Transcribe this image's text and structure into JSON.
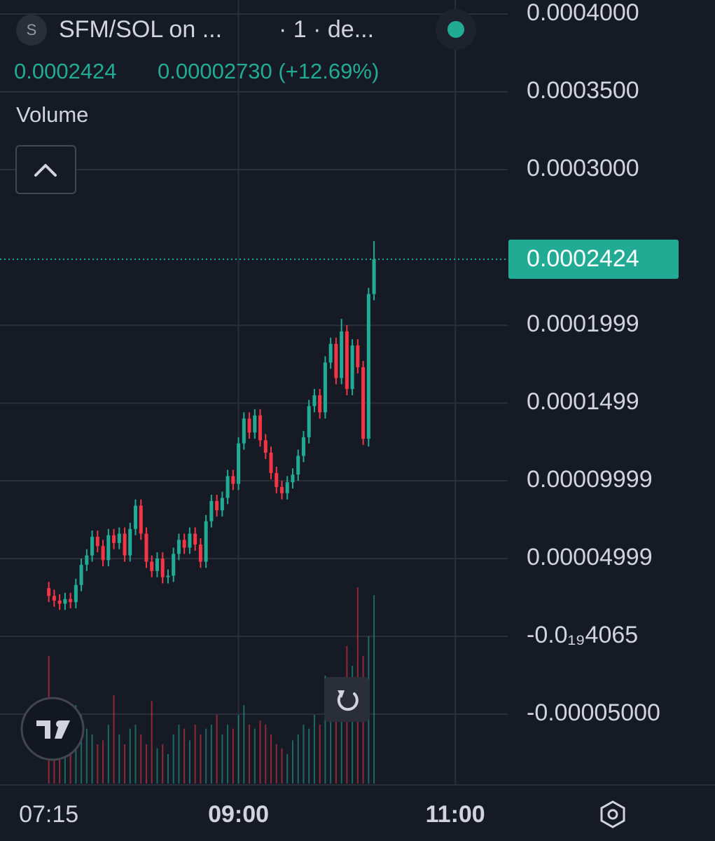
{
  "header": {
    "icon_letter": "S",
    "symbol": "SFM/SOL on ...",
    "interval": "· 1 · de...",
    "change": "0.00002730 (+12.69%)",
    "volume_label": "Volume"
  },
  "chart_data": {
    "type": "candlestick",
    "up_color": "#22ab94",
    "down_color": "#f23645",
    "grid": true,
    "last_price": 0.0002424,
    "x": [
      435,
      438,
      441,
      444,
      447,
      450,
      453,
      456,
      459,
      462,
      465,
      468,
      471,
      474,
      477,
      480,
      483,
      486,
      489,
      492,
      495,
      498,
      501,
      504,
      507,
      510,
      513,
      516,
      519,
      522,
      525,
      528,
      531,
      534,
      537,
      540,
      543,
      546,
      549,
      552,
      555,
      558,
      561,
      564,
      567,
      570,
      573,
      576,
      579,
      582,
      585,
      588,
      591,
      594,
      597,
      600,
      603,
      606,
      609,
      612,
      615
    ],
    "open": [
      3.1e-05,
      2.6e-05,
      2.3e-05,
      2.1e-05,
      2.4e-05,
      2.2e-05,
      3.3e-05,
      4.6e-05,
      5.2e-05,
      6.4e-05,
      5.8e-05,
      4.9e-05,
      6.5e-05,
      6e-05,
      6.6e-05,
      5.2e-05,
      6.9e-05,
      8.4e-05,
      6.6e-05,
      4.8e-05,
      4.2e-05,
      5e-05,
      3.8e-05,
      3.9e-05,
      5.3e-05,
      6.2e-05,
      5.7e-05,
      6.6e-05,
      5.9e-05,
      4.8e-05,
      7.4e-05,
      8.7e-05,
      8.1e-05,
      8.9e-05,
      0.000103,
      9.8e-05,
      0.000124,
      0.00014,
      0.000131,
      0.000142,
      0.000126,
      0.000118,
      0.000105,
      9.6e-05,
      9.2e-05,
      9.9e-05,
      0.000104,
      0.000116,
      0.000128,
      0.000148,
      0.000155,
      0.000144,
      0.000176,
      0.000188,
      0.000166,
      0.000196,
      0.000159,
      0.000187,
      0.000173,
      0.000127,
      0.00022
    ],
    "high": [
      3.5e-05,
      3e-05,
      2.7e-05,
      2.8e-05,
      2.8e-05,
      3.7e-05,
      5e-05,
      5.6e-05,
      6.8e-05,
      6.8e-05,
      6.2e-05,
      6.9e-05,
      6.9e-05,
      7e-05,
      7e-05,
      7.3e-05,
      8.8e-05,
      8.8e-05,
      7e-05,
      5.2e-05,
      5.4e-05,
      5.4e-05,
      4.3e-05,
      5.7e-05,
      6.6e-05,
      6.6e-05,
      7e-05,
      7e-05,
      6.3e-05,
      7.8e-05,
      9.1e-05,
      9.1e-05,
      9.3e-05,
      0.000107,
      0.000107,
      0.000128,
      0.000144,
      0.000144,
      0.000146,
      0.000146,
      0.00013,
      0.000122,
      0.000109,
      0.0001,
      0.000103,
      0.000108,
      0.00012,
      0.000132,
      0.000152,
      0.000159,
      0.000159,
      0.00018,
      0.000192,
      0.000192,
      0.000204,
      0.0002,
      0.000191,
      0.000191,
      0.000177,
      0.000224,
      0.000254
    ],
    "low": [
      2.2e-05,
      1.9e-05,
      1.7e-05,
      1.7e-05,
      1.8e-05,
      1.8e-05,
      2.9e-05,
      4.2e-05,
      4.8e-05,
      5.4e-05,
      4.5e-05,
      4.5e-05,
      5.6e-05,
      5.6e-05,
      4.8e-05,
      4.8e-05,
      6.5e-05,
      6.2e-05,
      4.4e-05,
      3.8e-05,
      3.8e-05,
      3.4e-05,
      3.4e-05,
      3.5e-05,
      4.9e-05,
      5.3e-05,
      5.3e-05,
      5.5e-05,
      4.4e-05,
      4.4e-05,
      7e-05,
      7.7e-05,
      7.7e-05,
      8.5e-05,
      9.4e-05,
      9.4e-05,
      0.00012,
      0.000127,
      0.000127,
      0.000122,
      0.000114,
      0.000101,
      9.2e-05,
      8.8e-05,
      8.8e-05,
      9.5e-05,
      0.0001,
      0.000112,
      0.000124,
      0.000144,
      0.00014,
      0.00014,
      0.000172,
      0.000162,
      0.000162,
      0.000155,
      0.000155,
      0.000169,
      0.000123,
      0.000122,
      0.000216
    ],
    "close": [
      2.6e-05,
      2.3e-05,
      2.1e-05,
      2.4e-05,
      2.2e-05,
      3.3e-05,
      4.6e-05,
      5.2e-05,
      6.4e-05,
      5.8e-05,
      4.9e-05,
      6.5e-05,
      6e-05,
      6.6e-05,
      5.2e-05,
      6.9e-05,
      8.4e-05,
      6.6e-05,
      4.8e-05,
      4.2e-05,
      5e-05,
      3.8e-05,
      3.9e-05,
      5.3e-05,
      6.2e-05,
      5.7e-05,
      6.6e-05,
      5.9e-05,
      4.8e-05,
      7.4e-05,
      8.7e-05,
      8.1e-05,
      8.9e-05,
      0.000103,
      9.8e-05,
      0.000124,
      0.00014,
      0.000131,
      0.000142,
      0.000126,
      0.000118,
      0.000105,
      9.6e-05,
      9.2e-05,
      9.9e-05,
      0.000104,
      0.000116,
      0.000128,
      0.000148,
      0.000155,
      0.000144,
      0.000176,
      0.000188,
      0.000166,
      0.000196,
      0.000159,
      0.000187,
      0.000173,
      0.000127,
      0.00022,
      0.0002424
    ],
    "volume": [
      65,
      30,
      20,
      18,
      22,
      40,
      35,
      28,
      25,
      20,
      22,
      30,
      45,
      25,
      20,
      28,
      30,
      25,
      20,
      42,
      18,
      20,
      15,
      25,
      30,
      28,
      22,
      30,
      25,
      28,
      30,
      35,
      25,
      30,
      28,
      35,
      40,
      30,
      28,
      32,
      30,
      25,
      20,
      18,
      15,
      22,
      25,
      30,
      28,
      35,
      30,
      55,
      40,
      35,
      45,
      70,
      60,
      100,
      65,
      75,
      96
    ],
    "volume_lim": [
      0,
      100
    ],
    "xlim": [
      408,
      689
    ],
    "xticks": [
      {
        "value": 435,
        "label": "07:15"
      },
      {
        "value": 540,
        "label": "09:00"
      },
      {
        "value": 660,
        "label": "11:00"
      }
    ],
    "ylim": [
      -9.46e-05,
      0.000409
    ],
    "yticks": [
      {
        "value": 0.0004,
        "label": "0.0004000"
      },
      {
        "value": 0.00035,
        "label": "0.0003500"
      },
      {
        "value": 0.0003,
        "label": "0.0003000"
      },
      0.0001999,
      0.0001499,
      9.999e-05,
      4.999e-05,
      {
        "value": -4.065e-20,
        "label": "-0.0₁₉4065"
      },
      {
        "value": -5e-05,
        "label": "-0.00005000"
      }
    ]
  }
}
